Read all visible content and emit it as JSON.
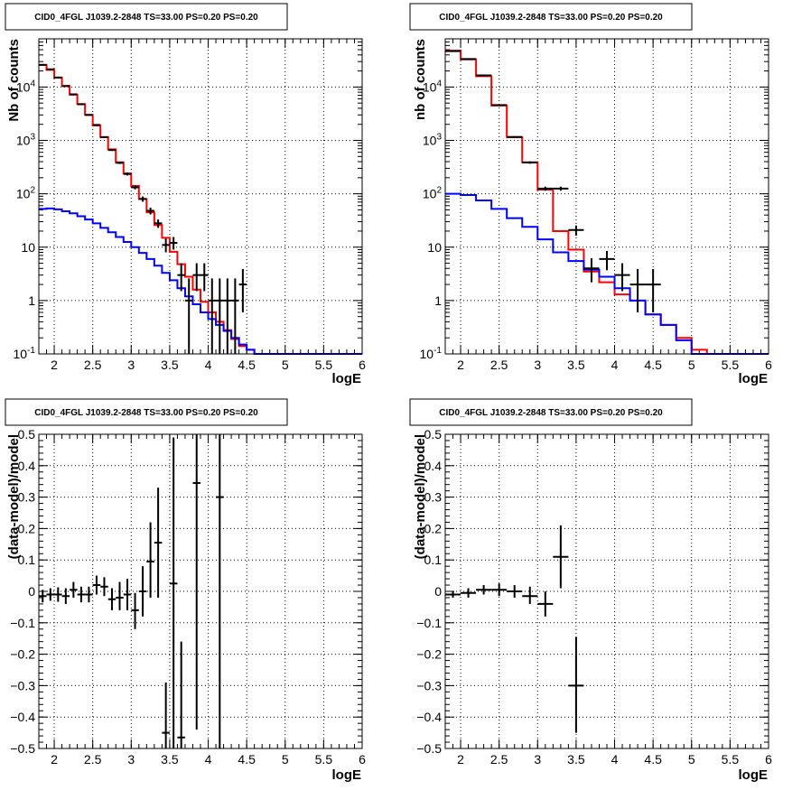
{
  "chart_data": [
    {
      "type": "histogram-log",
      "title": "CID0_4FGL J1039.2-2848 TS=33.00 PS=0.20 PS=0.20",
      "xlabel": "logE",
      "ylabel": "Nb of counts",
      "xlim": [
        1.8,
        6.0
      ],
      "ylim": [
        0.1,
        80000
      ],
      "log_y": true,
      "grid": true,
      "x_ticks": [
        "2",
        "2.5",
        "3",
        "3.5",
        "4",
        "4.5",
        "5",
        "5.5",
        "6"
      ],
      "y_ticks": [
        "10^-1",
        "1",
        "10",
        "10^2",
        "10^3",
        "10^4"
      ],
      "bin_edges": [
        1.8,
        1.9,
        2.0,
        2.1,
        2.2,
        2.3,
        2.4,
        2.5,
        2.6,
        2.7,
        2.8,
        2.9,
        3.0,
        3.1,
        3.2,
        3.3,
        3.4,
        3.5,
        3.6,
        3.7,
        3.8,
        3.9,
        4.0,
        4.1,
        4.2,
        4.3,
        4.4,
        4.5,
        4.6,
        4.7,
        4.8,
        4.9,
        5.0,
        5.1,
        5.2,
        5.3,
        5.4,
        5.5,
        5.6,
        5.7,
        5.8,
        5.9,
        6.0
      ],
      "series": [
        {
          "name": "",
          "color": "#ff0000",
          "values": [
            26000,
            21000,
            15000,
            10500,
            7200,
            4800,
            3000,
            1900,
            1150,
            680,
            390,
            240,
            140,
            80,
            45,
            26,
            15,
            8.2,
            4.8,
            2.8,
            1.6,
            0.95,
            0.6,
            0.4,
            0.28,
            0.19,
            0.14,
            0.12,
            0.1,
            0.1,
            0.1,
            0.1,
            0.1,
            0.1,
            0.1,
            0.1,
            0.1,
            0.1,
            0.1,
            0.1,
            0.1,
            0.1
          ]
        },
        {
          "name": "",
          "color": "#0000ff",
          "values": [
            52,
            53,
            51,
            47,
            43,
            38,
            33,
            28,
            23,
            19,
            15.5,
            12.5,
            10,
            7.8,
            6,
            4.5,
            3.3,
            2.4,
            1.7,
            1.2,
            0.85,
            0.6,
            0.45,
            0.35,
            0.27,
            0.2,
            0.15,
            0.12,
            0.1,
            0.1,
            0.1,
            0.1,
            0.1,
            0.1,
            0.1,
            0.1,
            0.1,
            0.1,
            0.1,
            0.1,
            0.1,
            0.1
          ]
        }
      ],
      "data_points": [
        {
          "x": 1.85,
          "y": 26000,
          "xerr": 0.05,
          "ylo": 25800,
          "yhi": 26200
        },
        {
          "x": 1.95,
          "y": 21500,
          "xerr": 0.05,
          "ylo": 21300,
          "yhi": 21700
        },
        {
          "x": 2.05,
          "y": 15100,
          "xerr": 0.05,
          "ylo": 14900,
          "yhi": 15300
        },
        {
          "x": 2.15,
          "y": 10400,
          "xerr": 0.05,
          "ylo": 10250,
          "yhi": 10550
        },
        {
          "x": 2.25,
          "y": 7300,
          "xerr": 0.05,
          "ylo": 7180,
          "yhi": 7420
        },
        {
          "x": 2.35,
          "y": 4750,
          "xerr": 0.05,
          "ylo": 4650,
          "yhi": 4850
        },
        {
          "x": 2.45,
          "y": 3000,
          "xerr": 0.05,
          "ylo": 2930,
          "yhi": 3070
        },
        {
          "x": 2.55,
          "y": 1950,
          "xerr": 0.05,
          "ylo": 1900,
          "yhi": 2000
        },
        {
          "x": 2.65,
          "y": 1150,
          "xerr": 0.05,
          "ylo": 1110,
          "yhi": 1190
        },
        {
          "x": 2.75,
          "y": 660,
          "xerr": 0.05,
          "ylo": 635,
          "yhi": 685
        },
        {
          "x": 2.85,
          "y": 380,
          "xerr": 0.05,
          "ylo": 362,
          "yhi": 398
        },
        {
          "x": 2.95,
          "y": 235,
          "xerr": 0.05,
          "ylo": 220,
          "yhi": 250
        },
        {
          "x": 3.05,
          "y": 132,
          "xerr": 0.05,
          "ylo": 121,
          "yhi": 143
        },
        {
          "x": 3.15,
          "y": 80,
          "xerr": 0.05,
          "ylo": 71,
          "yhi": 89
        },
        {
          "x": 3.25,
          "y": 48,
          "xerr": 0.05,
          "ylo": 41,
          "yhi": 55
        },
        {
          "x": 3.35,
          "y": 28,
          "xerr": 0.05,
          "ylo": 23,
          "yhi": 33
        },
        {
          "x": 3.45,
          "y": 11,
          "xerr": 0.05,
          "ylo": 8,
          "yhi": 14.5
        },
        {
          "x": 3.55,
          "y": 12,
          "xerr": 0.05,
          "ylo": 9,
          "yhi": 15.5
        },
        {
          "x": 3.65,
          "y": 3,
          "xerr": 0.05,
          "ylo": 1.5,
          "yhi": 5
        },
        {
          "x": 3.75,
          "y": 1,
          "xerr": 0.05,
          "ylo": 0.1,
          "yhi": 2.6
        },
        {
          "x": 3.85,
          "y": 3,
          "xerr": 0.05,
          "ylo": 1.5,
          "yhi": 5
        },
        {
          "x": 3.95,
          "y": 3,
          "xerr": 0.05,
          "ylo": 1.5,
          "yhi": 5
        },
        {
          "x": 4.05,
          "y": 1,
          "xerr": 0.05,
          "ylo": 0.1,
          "yhi": 2.6
        },
        {
          "x": 4.15,
          "y": 1,
          "xerr": 0.05,
          "ylo": 0.1,
          "yhi": 2.6
        },
        {
          "x": 4.25,
          "y": 1,
          "xerr": 0.05,
          "ylo": 0.1,
          "yhi": 2.6
        },
        {
          "x": 4.35,
          "y": 1,
          "xerr": 0.05,
          "ylo": 0.1,
          "yhi": 2.6
        },
        {
          "x": 4.45,
          "y": 2,
          "xerr": 0.05,
          "ylo": 0.6,
          "yhi": 3.9
        }
      ]
    },
    {
      "type": "histogram-log",
      "title": "CID0_4FGL J1039.2-2848 TS=33.00 PS=0.20 PS=0.20",
      "xlabel": "logE",
      "ylabel": "nb of counts",
      "xlim": [
        1.8,
        6.0
      ],
      "ylim": [
        0.1,
        80000
      ],
      "log_y": true,
      "grid": true,
      "x_ticks": [
        "2",
        "2.5",
        "3",
        "3.5",
        "4",
        "4.5",
        "5",
        "5.5",
        "6"
      ],
      "y_ticks": [
        "10^-1",
        "1",
        "10",
        "10^2",
        "10^3",
        "10^4"
      ],
      "bin_edges": [
        1.8,
        2.0,
        2.2,
        2.4,
        2.6,
        2.8,
        3.0,
        3.2,
        3.4,
        3.6,
        3.8,
        4.0,
        4.2,
        4.4,
        4.6,
        4.8,
        5.0,
        5.2,
        5.4,
        5.6,
        5.8,
        6.0
      ],
      "series": [
        {
          "name": "",
          "color": "#ff0000",
          "values": [
            48000,
            33000,
            16000,
            4500,
            1150,
            390,
            120,
            20,
            9,
            3.5,
            2.2,
            1.3,
            1.0,
            0.55,
            0.35,
            0.2,
            0.12,
            0.1,
            0.1,
            0.1,
            0.1
          ]
        },
        {
          "name": "",
          "color": "#0000ff",
          "values": [
            100,
            95,
            75,
            52,
            35,
            24,
            14,
            8,
            5.5,
            3.8,
            2.8,
            1.7,
            1.0,
            0.55,
            0.35,
            0.18,
            0.1,
            0.1,
            0.1,
            0.1,
            0.1
          ]
        }
      ],
      "data_points": [
        {
          "x": 1.9,
          "y": 47000,
          "xerr": 0.1,
          "ylo": 46500,
          "yhi": 47500
        },
        {
          "x": 2.1,
          "y": 33500,
          "xerr": 0.1,
          "ylo": 33100,
          "yhi": 33900
        },
        {
          "x": 2.3,
          "y": 16500,
          "xerr": 0.1,
          "ylo": 16200,
          "yhi": 16800
        },
        {
          "x": 2.5,
          "y": 4600,
          "xerr": 0.1,
          "ylo": 4500,
          "yhi": 4700
        },
        {
          "x": 2.7,
          "y": 1160,
          "xerr": 0.1,
          "ylo": 1120,
          "yhi": 1200
        },
        {
          "x": 2.9,
          "y": 385,
          "xerr": 0.1,
          "ylo": 365,
          "yhi": 405
        },
        {
          "x": 3.1,
          "y": 125,
          "xerr": 0.1,
          "ylo": 114,
          "yhi": 136
        },
        {
          "x": 3.3,
          "y": 125,
          "xerr": 0.1,
          "ylo": 114,
          "yhi": 136
        },
        {
          "x": 3.5,
          "y": 21,
          "xerr": 0.1,
          "ylo": 16.5,
          "yhi": 25.5
        },
        {
          "x": 3.7,
          "y": 4,
          "xerr": 0.1,
          "ylo": 2.2,
          "yhi": 6.2
        },
        {
          "x": 3.9,
          "y": 6,
          "xerr": 0.1,
          "ylo": 3.7,
          "yhi": 8.5
        },
        {
          "x": 4.1,
          "y": 3,
          "xerr": 0.1,
          "ylo": 1.5,
          "yhi": 5
        },
        {
          "x": 4.3,
          "y": 2,
          "xerr": 0.1,
          "ylo": 0.6,
          "yhi": 3.9
        },
        {
          "x": 4.5,
          "y": 2,
          "xerr": 0.1,
          "ylo": 0.6,
          "yhi": 3.9
        }
      ]
    },
    {
      "type": "residual",
      "title": "CID0_4FGL J1039.2-2848 TS=33.00 PS=0.20 PS=0.20",
      "xlabel": "logE",
      "ylabel": "(data-model)/model",
      "xlim": [
        1.8,
        6.0
      ],
      "ylim": [
        -0.5,
        0.5
      ],
      "grid": true,
      "x_ticks": [
        "2",
        "2.5",
        "3",
        "3.5",
        "4",
        "4.5",
        "5",
        "5.5",
        "6"
      ],
      "y_ticks": [
        "-0.5",
        "-0.4",
        "-0.3",
        "-0.2",
        "-0.1",
        "0",
        "0.1",
        "0.2",
        "0.3",
        "0.4",
        "0.5"
      ],
      "data_points": [
        {
          "x": 1.85,
          "y": -0.015,
          "xerr": 0.05,
          "ylo": -0.035,
          "yhi": 0.005
        },
        {
          "x": 1.95,
          "y": -0.01,
          "xerr": 0.05,
          "ylo": -0.03,
          "yhi": 0.01
        },
        {
          "x": 2.05,
          "y": -0.01,
          "xerr": 0.05,
          "ylo": -0.033,
          "yhi": 0.013
        },
        {
          "x": 2.15,
          "y": -0.015,
          "xerr": 0.05,
          "ylo": -0.04,
          "yhi": 0.01
        },
        {
          "x": 2.25,
          "y": 0.005,
          "xerr": 0.05,
          "ylo": -0.02,
          "yhi": 0.03
        },
        {
          "x": 2.35,
          "y": -0.01,
          "xerr": 0.05,
          "ylo": -0.035,
          "yhi": 0.015
        },
        {
          "x": 2.45,
          "y": -0.01,
          "xerr": 0.05,
          "ylo": -0.035,
          "yhi": 0.015
        },
        {
          "x": 2.55,
          "y": 0.02,
          "xerr": 0.05,
          "ylo": -0.01,
          "yhi": 0.05
        },
        {
          "x": 2.65,
          "y": 0.015,
          "xerr": 0.05,
          "ylo": -0.015,
          "yhi": 0.045
        },
        {
          "x": 2.75,
          "y": -0.025,
          "xerr": 0.05,
          "ylo": -0.06,
          "yhi": 0.01
        },
        {
          "x": 2.85,
          "y": -0.02,
          "xerr": 0.05,
          "ylo": -0.06,
          "yhi": 0.03
        },
        {
          "x": 2.95,
          "y": -0.01,
          "xerr": 0.05,
          "ylo": -0.06,
          "yhi": 0.04
        },
        {
          "x": 3.05,
          "y": -0.06,
          "xerr": 0.05,
          "ylo": -0.12,
          "yhi": -0.005
        },
        {
          "x": 3.15,
          "y": 0.0,
          "xerr": 0.05,
          "ylo": -0.08,
          "yhi": 0.08
        },
        {
          "x": 3.25,
          "y": 0.095,
          "xerr": 0.05,
          "ylo": -0.02,
          "yhi": 0.22
        },
        {
          "x": 3.35,
          "y": 0.155,
          "xerr": 0.05,
          "ylo": -0.02,
          "yhi": 0.33
        },
        {
          "x": 3.45,
          "y": -0.45,
          "xerr": 0.05,
          "ylo": -0.5,
          "yhi": -0.29
        },
        {
          "x": 3.55,
          "y": 0.025,
          "xerr": 0.05,
          "ylo": -0.5,
          "yhi": 0.49
        },
        {
          "x": 3.65,
          "y": -0.465,
          "xerr": 0.05,
          "ylo": -0.5,
          "yhi": -0.16
        },
        {
          "x": 3.85,
          "y": 0.345,
          "xerr": 0.05,
          "ylo": -0.44,
          "yhi": 0.5
        },
        {
          "x": 4.15,
          "y": 0.3,
          "xerr": 0.05,
          "ylo": -0.5,
          "yhi": 0.5
        }
      ]
    },
    {
      "type": "residual",
      "title": "CID0_4FGL J1039.2-2848 TS=33.00 PS=0.20 PS=0.20",
      "xlabel": "logE",
      "ylabel": "(data-model)/model",
      "xlim": [
        1.8,
        6.0
      ],
      "ylim": [
        -0.5,
        0.5
      ],
      "grid": true,
      "x_ticks": [
        "2",
        "2.5",
        "3",
        "3.5",
        "4",
        "4.5",
        "5",
        "5.5",
        "6"
      ],
      "y_ticks": [
        "-0.5",
        "-0.4",
        "-0.3",
        "-0.2",
        "-0.1",
        "0",
        "0.1",
        "0.2",
        "0.3",
        "0.4",
        "0.5"
      ],
      "data_points": [
        {
          "x": 1.9,
          "y": -0.01,
          "xerr": 0.1,
          "ylo": -0.02,
          "yhi": 0.0
        },
        {
          "x": 2.1,
          "y": -0.005,
          "xerr": 0.1,
          "ylo": -0.02,
          "yhi": 0.01
        },
        {
          "x": 2.3,
          "y": 0.005,
          "xerr": 0.1,
          "ylo": -0.01,
          "yhi": 0.02
        },
        {
          "x": 2.5,
          "y": 0.005,
          "xerr": 0.1,
          "ylo": -0.015,
          "yhi": 0.025
        },
        {
          "x": 2.7,
          "y": 0.0,
          "xerr": 0.1,
          "ylo": -0.02,
          "yhi": 0.02
        },
        {
          "x": 2.9,
          "y": -0.015,
          "xerr": 0.1,
          "ylo": -0.04,
          "yhi": 0.015
        },
        {
          "x": 3.1,
          "y": -0.04,
          "xerr": 0.1,
          "ylo": -0.08,
          "yhi": 0.0
        },
        {
          "x": 3.3,
          "y": 0.11,
          "xerr": 0.1,
          "ylo": 0.01,
          "yhi": 0.21
        },
        {
          "x": 3.5,
          "y": -0.3,
          "xerr": 0.1,
          "ylo": -0.45,
          "yhi": -0.145
        }
      ]
    }
  ]
}
